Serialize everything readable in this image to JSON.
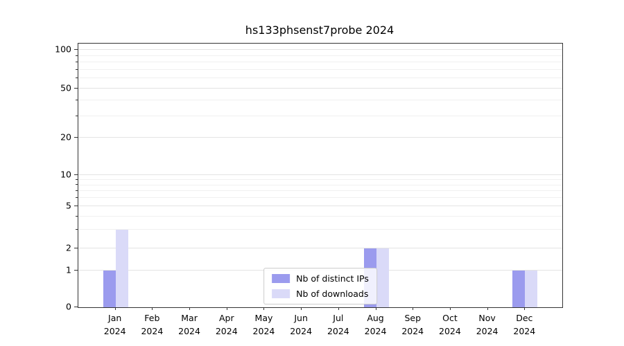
{
  "chart_data": {
    "type": "bar",
    "title": "hs133phsenst7probe 2024",
    "categories": [
      "Jan",
      "Feb",
      "Mar",
      "Apr",
      "May",
      "Jun",
      "Jul",
      "Aug",
      "Sep",
      "Oct",
      "Nov",
      "Dec"
    ],
    "year_label": "2024",
    "series": [
      {
        "name": "Nb of distinct IPs",
        "color": "#9b9bee",
        "values": [
          1,
          0,
          0,
          0,
          0,
          0,
          0,
          2,
          0,
          0,
          0,
          1
        ]
      },
      {
        "name": "Nb of downloads",
        "color": "#dadaf8",
        "values": [
          3,
          0,
          0,
          0,
          0,
          0,
          0,
          2,
          0,
          0,
          0,
          1
        ]
      }
    ],
    "yscale": "log",
    "yticks": [
      0,
      1,
      2,
      5,
      10,
      20,
      50,
      100
    ],
    "minor_yticks": [
      3,
      4,
      6,
      7,
      8,
      9,
      30,
      40,
      60,
      70,
      80,
      90
    ],
    "ylim": [
      0,
      115
    ],
    "grid": true,
    "legend_position": "lower center"
  }
}
